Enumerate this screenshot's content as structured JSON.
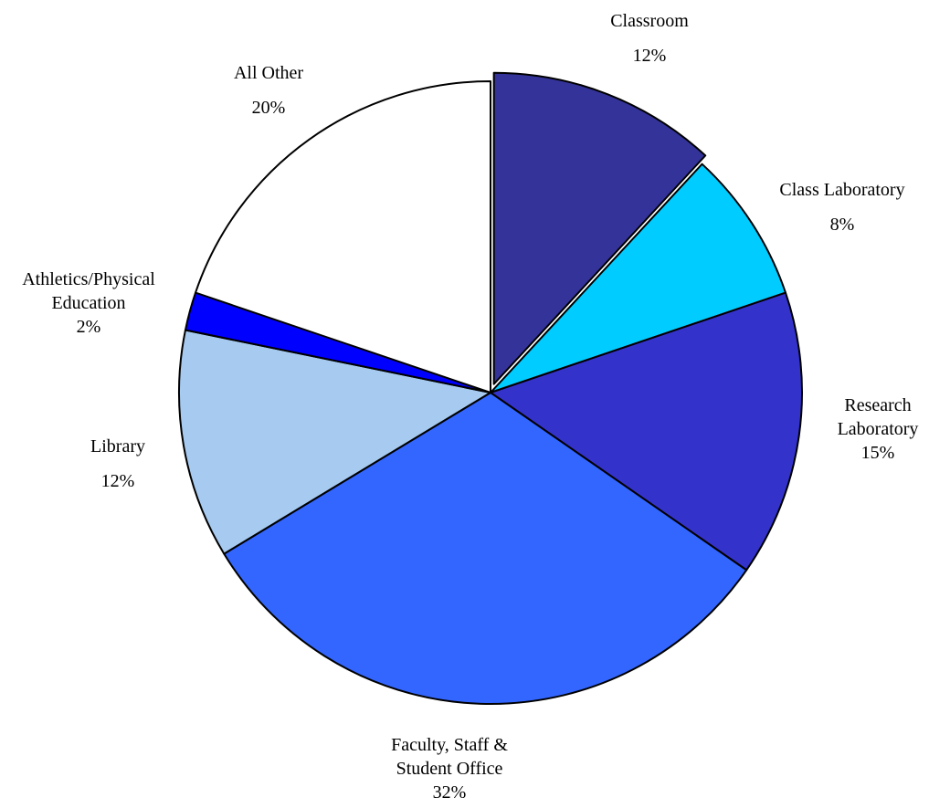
{
  "chart_data": {
    "type": "pie",
    "slices": [
      {
        "label_lines": [
          "Classroom"
        ],
        "value": 12,
        "value_label": "12%",
        "color": "#333399",
        "exploded": true
      },
      {
        "label_lines": [
          "Class Laboratory"
        ],
        "value": 8,
        "value_label": "8%",
        "color": "#00ccff",
        "exploded": false
      },
      {
        "label_lines": [
          "Research",
          "Laboratory"
        ],
        "value": 15,
        "value_label": "15%",
        "color": "#3333cc",
        "exploded": false
      },
      {
        "label_lines": [
          "Faculty, Staff &",
          "Student Office"
        ],
        "value": 32,
        "value_label": "32%",
        "color": "#3366ff",
        "exploded": false
      },
      {
        "label_lines": [
          "Library"
        ],
        "value": 12,
        "value_label": "12%",
        "color": "#a6caf0",
        "exploded": false
      },
      {
        "label_lines": [
          "Athletics/Physical",
          "Education"
        ],
        "value": 2,
        "value_label": "2%",
        "color": "#0000ff",
        "exploded": false
      },
      {
        "label_lines": [
          "All Other"
        ],
        "value": 20,
        "value_label": "20%",
        "color": "#ffffff",
        "exploded": false
      }
    ],
    "start": "12 o'clock",
    "direction": "clockwise",
    "outline_color": "#000000"
  }
}
